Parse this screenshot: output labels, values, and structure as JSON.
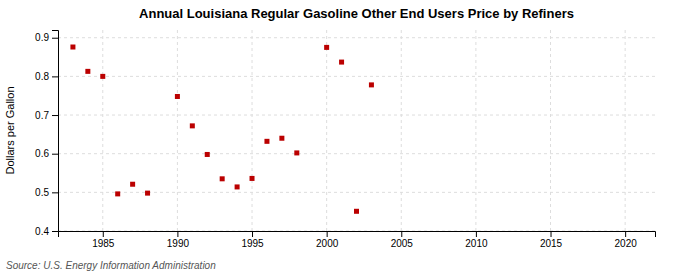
{
  "chart_data": {
    "type": "scatter",
    "title": "Annual Louisiana Regular Gasoline Other End Users Price by Refiners",
    "ylabel": "Dollars per Gallon",
    "annotation": "Source: U.S. Energy Information Administration",
    "color": "#bb0000",
    "marker": "square",
    "grid": true,
    "xlim": [
      1982,
      2022
    ],
    "ylim": [
      0.4,
      0.92
    ],
    "xticks": [
      1985,
      1990,
      1995,
      2000,
      2005,
      2010,
      2015,
      2020
    ],
    "yticks": [
      0.4,
      0.5,
      0.6,
      0.7,
      0.8,
      0.9
    ],
    "x": [
      1983,
      1984,
      1985,
      1986,
      1987,
      1988,
      1990,
      1991,
      1992,
      1993,
      1994,
      1995,
      1996,
      1997,
      1998,
      2000,
      2001,
      2002,
      2003
    ],
    "values": [
      0.876,
      0.813,
      0.8,
      0.496,
      0.521,
      0.498,
      0.748,
      0.672,
      0.598,
      0.535,
      0.514,
      0.536,
      0.632,
      0.64,
      0.602,
      0.875,
      0.837,
      0.451,
      0.778
    ]
  }
}
